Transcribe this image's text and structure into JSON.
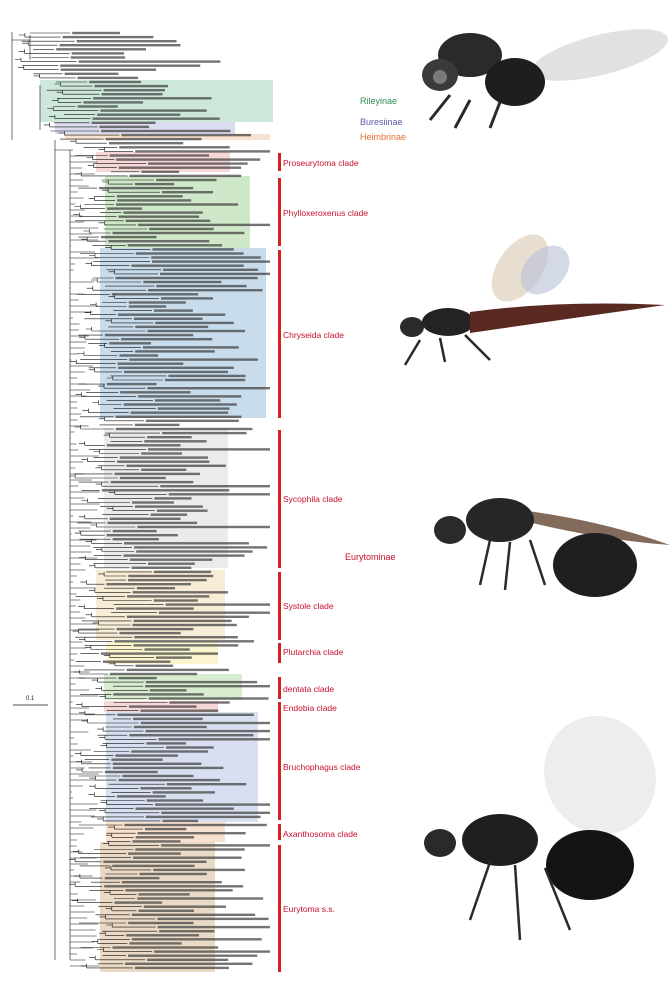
{
  "figure": {
    "scale_label": "0.1",
    "subfamilies": [
      {
        "label": "Rileyinae",
        "color": "#2e8b57"
      },
      {
        "label": "Buresiinae",
        "color": "#5a5aa8"
      },
      {
        "label": "Heimbrinae",
        "color": "#e07030"
      },
      {
        "label": "Eurytominae",
        "color": "#c8102e"
      }
    ],
    "clades": [
      {
        "label": "Proseurytoma clade",
        "color": "#f6d7d7"
      },
      {
        "label": "Phylloxeroxenus clade",
        "color": "#cfe8c9"
      },
      {
        "label": "Chryseida clade",
        "color": "#c8dcec"
      },
      {
        "label": "Sycophila clade",
        "color": "#ebebeb"
      },
      {
        "label": "Systole clade",
        "color": "#f7ecd6"
      },
      {
        "label": "Plutarchia clade",
        "color": "#fbf5cf"
      },
      {
        "label": "dentata clade",
        "color": "#d8edcf"
      },
      {
        "label": "Endobia clade",
        "color": "#f6d7d7"
      },
      {
        "label": "Bruchophagus clade",
        "color": "#d8dff0"
      },
      {
        "label": "Axanthosoma clade",
        "color": "#f8e0cf"
      },
      {
        "label": "Eurytoma s.s.",
        "color": "#ead9c4"
      }
    ],
    "outgroup_bands": [
      {
        "name": "rileyinae",
        "color": "#cde8da"
      },
      {
        "name": "buresiinae",
        "color": "#dcdcf0"
      },
      {
        "name": "heimbrinae",
        "color": "#f8e2cf"
      }
    ],
    "images": [
      {
        "name": "wasp-image-rileyinae"
      },
      {
        "name": "wasp-image-chryseida"
      },
      {
        "name": "wasp-image-sycophila"
      },
      {
        "name": "wasp-image-eurytoma"
      }
    ]
  }
}
